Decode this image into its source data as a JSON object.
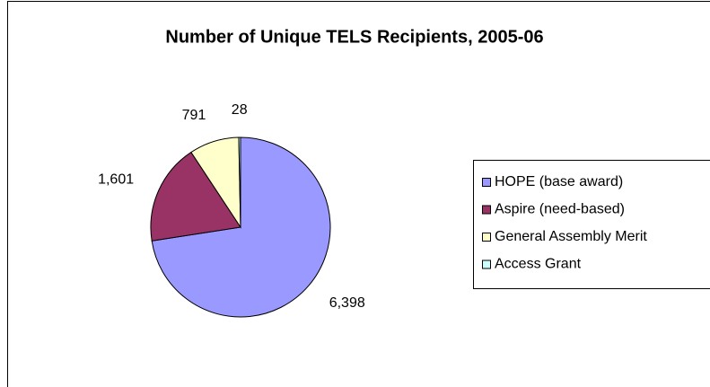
{
  "chart_data": {
    "type": "pie",
    "title": "Number of Unique TELS Recipients, 2005-06",
    "categories": [
      "HOPE (base award)",
      "Aspire (need-based)",
      "General Assembly Merit",
      "Access Grant"
    ],
    "values": [
      6398,
      1601,
      791,
      28
    ],
    "value_labels": [
      "6,398",
      "1,601",
      "791",
      "28"
    ],
    "colors": [
      "#9999ff",
      "#993366",
      "#ffffcc",
      "#ccffff"
    ],
    "legend": "right"
  }
}
